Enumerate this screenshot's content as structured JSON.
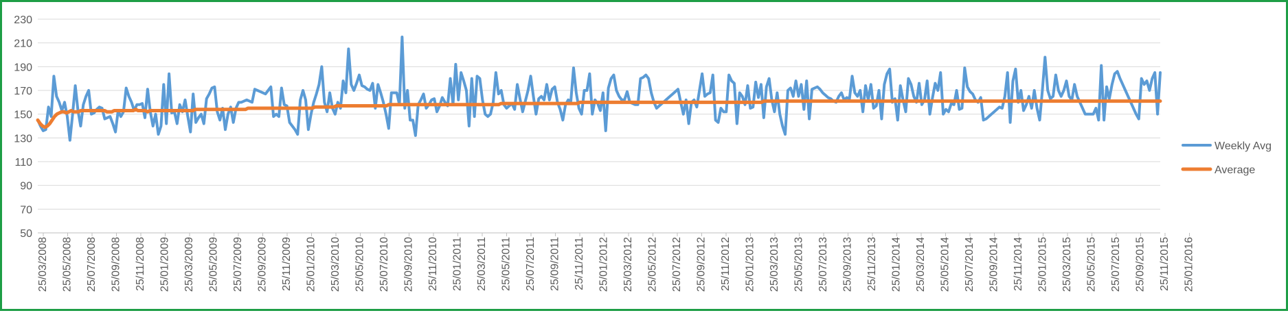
{
  "chart_data": {
    "type": "line",
    "title": "",
    "xlabel": "",
    "ylabel": "",
    "ylim": [
      50,
      230
    ],
    "yticks": [
      50,
      70,
      90,
      110,
      130,
      150,
      170,
      190,
      210,
      230
    ],
    "x_tick_labels": [
      "25/03/2008",
      "25/05/2008",
      "25/07/2008",
      "25/09/2008",
      "25/11/2008",
      "25/01/2009",
      "25/03/2009",
      "25/05/2009",
      "25/07/2009",
      "25/09/2009",
      "25/11/2009",
      "25/01/2010",
      "25/03/2010",
      "25/05/2010",
      "25/07/2010",
      "25/09/2010",
      "25/11/2010",
      "25/01/2011",
      "25/03/2011",
      "25/05/2011",
      "25/07/2011",
      "25/09/2011",
      "25/11/2011",
      "25/01/2012",
      "25/03/2012",
      "25/05/2012",
      "25/07/2012",
      "25/09/2012",
      "25/11/2012",
      "25/01/2013",
      "25/03/2013",
      "25/05/2013",
      "25/07/2013",
      "25/09/2013",
      "25/11/2013",
      "25/01/2014",
      "25/03/2014",
      "25/05/2014",
      "25/07/2014",
      "25/09/2014",
      "25/11/2014",
      "25/01/2015",
      "25/03/2015",
      "25/05/2015",
      "25/07/2015",
      "25/09/2015",
      "25/11/2015",
      "25/01/2016"
    ],
    "grid": true,
    "legend_position": "right",
    "series": [
      {
        "name": "Weekly Avg",
        "color": "#5b9bd5",
        "values": [
          145,
          140,
          136,
          137,
          156,
          148,
          182,
          165,
          160,
          153,
          160,
          148,
          128,
          150,
          174,
          153,
          140,
          158,
          165,
          170,
          150,
          151,
          154,
          156,
          155,
          146,
          147,
          148,
          142,
          135,
          153,
          148,
          152,
          172,
          165,
          160,
          153,
          158,
          158,
          159,
          147,
          171,
          152,
          140,
          150,
          133,
          140,
          175,
          142,
          184,
          151,
          152,
          142,
          158,
          152,
          162,
          148,
          135,
          167,
          143,
          147,
          150,
          142,
          163,
          167,
          172,
          173,
          152,
          145,
          155,
          137,
          150,
          156,
          143,
          155,
          160,
          160,
          161,
          162,
          161,
          160,
          171,
          170,
          169,
          168,
          167,
          170,
          173,
          148,
          150,
          148,
          172,
          158,
          157,
          143,
          140,
          137,
          133,
          162,
          170,
          162,
          137,
          150,
          160,
          167,
          175,
          190,
          160,
          152,
          168,
          155,
          150,
          160,
          155,
          178,
          168,
          205,
          175,
          170,
          176,
          183,
          174,
          173,
          171,
          170,
          176,
          155,
          175,
          168,
          160,
          150,
          138,
          168,
          168,
          168,
          158,
          215,
          155,
          170,
          145,
          145,
          132,
          158,
          162,
          167,
          155,
          158,
          162,
          163,
          152,
          157,
          164,
          160,
          157,
          180,
          158,
          192,
          162,
          185,
          178,
          170,
          140,
          180,
          148,
          182,
          180,
          162,
          150,
          148,
          150,
          160,
          185,
          167,
          170,
          158,
          155,
          157,
          159,
          154,
          175,
          163,
          152,
          161,
          170,
          182,
          165,
          150,
          163,
          165,
          162,
          175,
          162,
          171,
          173,
          160,
          154,
          145,
          158,
          162,
          161,
          189,
          168,
          155,
          150,
          170,
          170,
          184,
          150,
          162,
          159,
          153,
          168,
          136,
          172,
          180,
          183,
          170,
          165,
          162,
          162,
          169,
          160,
          159,
          158,
          158,
          180,
          181,
          183,
          180,
          168,
          160,
          155,
          157,
          159,
          161,
          163,
          165,
          167,
          169,
          171,
          160,
          150,
          162,
          142,
          160,
          162,
          156,
          170,
          184,
          165,
          167,
          168,
          183,
          145,
          143,
          155,
          152,
          152,
          183,
          178,
          176,
          142,
          168,
          165,
          158,
          174,
          155,
          156,
          177,
          164,
          175,
          147,
          173,
          180,
          162,
          152,
          168,
          150,
          140,
          133,
          170,
          172,
          165,
          178,
          165,
          175,
          154,
          178,
          146,
          171,
          172,
          173,
          171,
          168,
          166,
          164,
          163,
          161,
          160,
          165,
          168,
          162,
          164,
          163,
          182,
          168,
          165,
          170,
          152,
          174,
          162,
          175,
          155,
          157,
          170,
          146,
          175,
          184,
          188,
          160,
          163,
          145,
          174,
          162,
          152,
          180,
          175,
          165,
          160,
          176,
          158,
          162,
          178,
          150,
          164,
          176,
          170,
          185,
          150,
          154,
          152,
          159,
          158,
          170,
          154,
          155,
          189,
          173,
          169,
          167,
          162,
          160,
          164,
          145,
          146,
          148,
          150,
          152,
          154,
          156,
          155,
          165,
          185,
          143,
          178,
          188,
          160,
          170,
          153,
          158,
          165,
          155,
          170,
          155,
          145,
          170,
          198,
          170,
          163,
          165,
          183,
          170,
          165,
          170,
          178,
          165,
          162,
          175,
          165,
          160,
          155,
          150,
          150,
          150,
          150,
          155,
          145,
          191,
          145,
          173,
          163,
          175,
          184,
          186,
          180,
          175,
          170,
          165,
          160,
          155,
          150,
          146,
          180,
          175,
          178,
          170,
          180,
          185,
          150,
          185
        ]
      },
      {
        "name": "Average",
        "color": "#ed7d31",
        "values": [
          145,
          142,
          140,
          139,
          140,
          142,
          145,
          148,
          150,
          151,
          152,
          152,
          151,
          152,
          153,
          152,
          152,
          152,
          153,
          153,
          153,
          153,
          153,
          153,
          153,
          153,
          153,
          153,
          153,
          152,
          152,
          152,
          153,
          153,
          153,
          153,
          153,
          153,
          153,
          153,
          153,
          154,
          153,
          153,
          153,
          153,
          152,
          153,
          153,
          153,
          153,
          153,
          153,
          153,
          153,
          153,
          153,
          153,
          153,
          153,
          153,
          153,
          153,
          153,
          153,
          153,
          154,
          154,
          154,
          154,
          154,
          154,
          154,
          154,
          154,
          154,
          154,
          154,
          154,
          154,
          154,
          154,
          154,
          154,
          154,
          154,
          154,
          154,
          155,
          155,
          155,
          155,
          155,
          155,
          155,
          155,
          155,
          155,
          155,
          155,
          155,
          155,
          155,
          155,
          155,
          155,
          155,
          155,
          155,
          155,
          155,
          155,
          155,
          155,
          155,
          155,
          156,
          156,
          156,
          156,
          156,
          156,
          156,
          156,
          156,
          157,
          157,
          157,
          157,
          157,
          157,
          157,
          157,
          157,
          157,
          157,
          157,
          157,
          157,
          157,
          157,
          157,
          157,
          157,
          157,
          157,
          157,
          158,
          158,
          158,
          158,
          158,
          158,
          158,
          158,
          158,
          158,
          158,
          158,
          158,
          158,
          158,
          158,
          158,
          158,
          158,
          158,
          158,
          158,
          158,
          158,
          158,
          158,
          158,
          158,
          158,
          158,
          158,
          158,
          158,
          158,
          158,
          158,
          158,
          158,
          158,
          158,
          158,
          158,
          158,
          158,
          158,
          158,
          158,
          159,
          159,
          159,
          159,
          159,
          159,
          159,
          159,
          159,
          159,
          159,
          159,
          159,
          159,
          159,
          159,
          159,
          159,
          159,
          159,
          159,
          159,
          159,
          159,
          159,
          159,
          159,
          159,
          159,
          159,
          159,
          159,
          159,
          160,
          160,
          160,
          160,
          160,
          160,
          160,
          160,
          160,
          160,
          160,
          160,
          160,
          160,
          160,
          160,
          160,
          160,
          160,
          160,
          160,
          160,
          160,
          160,
          160,
          160,
          160,
          160,
          160,
          160,
          160,
          160,
          160,
          160,
          160,
          160,
          160,
          160,
          160,
          160,
          160,
          160,
          160,
          160,
          160,
          160,
          160,
          160,
          160,
          160,
          160,
          160,
          160,
          160,
          160,
          160,
          160,
          160,
          160,
          160,
          160,
          160,
          160,
          160,
          160,
          160,
          160,
          160,
          160,
          160,
          160,
          160,
          160,
          160,
          160,
          160,
          160,
          161,
          161,
          161,
          161,
          161,
          161,
          161,
          161,
          161,
          161,
          161,
          161,
          161,
          161,
          161,
          161,
          161,
          161,
          161,
          161,
          161,
          161,
          161,
          161,
          161,
          161,
          161,
          161,
          161,
          161,
          161,
          161,
          161,
          161,
          161,
          161,
          161,
          161,
          161,
          161,
          161,
          161,
          161,
          161,
          161,
          161,
          161,
          161,
          161,
          161,
          161,
          161,
          161,
          161,
          161,
          161,
          161,
          161,
          161,
          161,
          161,
          161,
          161,
          161,
          161,
          161,
          161,
          161,
          161,
          161,
          161,
          161,
          161,
          161,
          161,
          161,
          161,
          161,
          161,
          161,
          161,
          161,
          161,
          161,
          161,
          161,
          161,
          161,
          161,
          161,
          161,
          161,
          161,
          161,
          161,
          161,
          161,
          161,
          161,
          161,
          161,
          161,
          161,
          161,
          161,
          161,
          161,
          161,
          161,
          161,
          161,
          161,
          161,
          161,
          161,
          161,
          161,
          161,
          161,
          161,
          161,
          161,
          161,
          161,
          161,
          161,
          161,
          161,
          161,
          161,
          161,
          161,
          161,
          161,
          161,
          161,
          161,
          161,
          161,
          161,
          161,
          161,
          161,
          161,
          161,
          161,
          161,
          161,
          161,
          161,
          161,
          161,
          161,
          161,
          161,
          161,
          161,
          161,
          161,
          161,
          161,
          161,
          161,
          161,
          161,
          161,
          161
        ]
      }
    ]
  }
}
